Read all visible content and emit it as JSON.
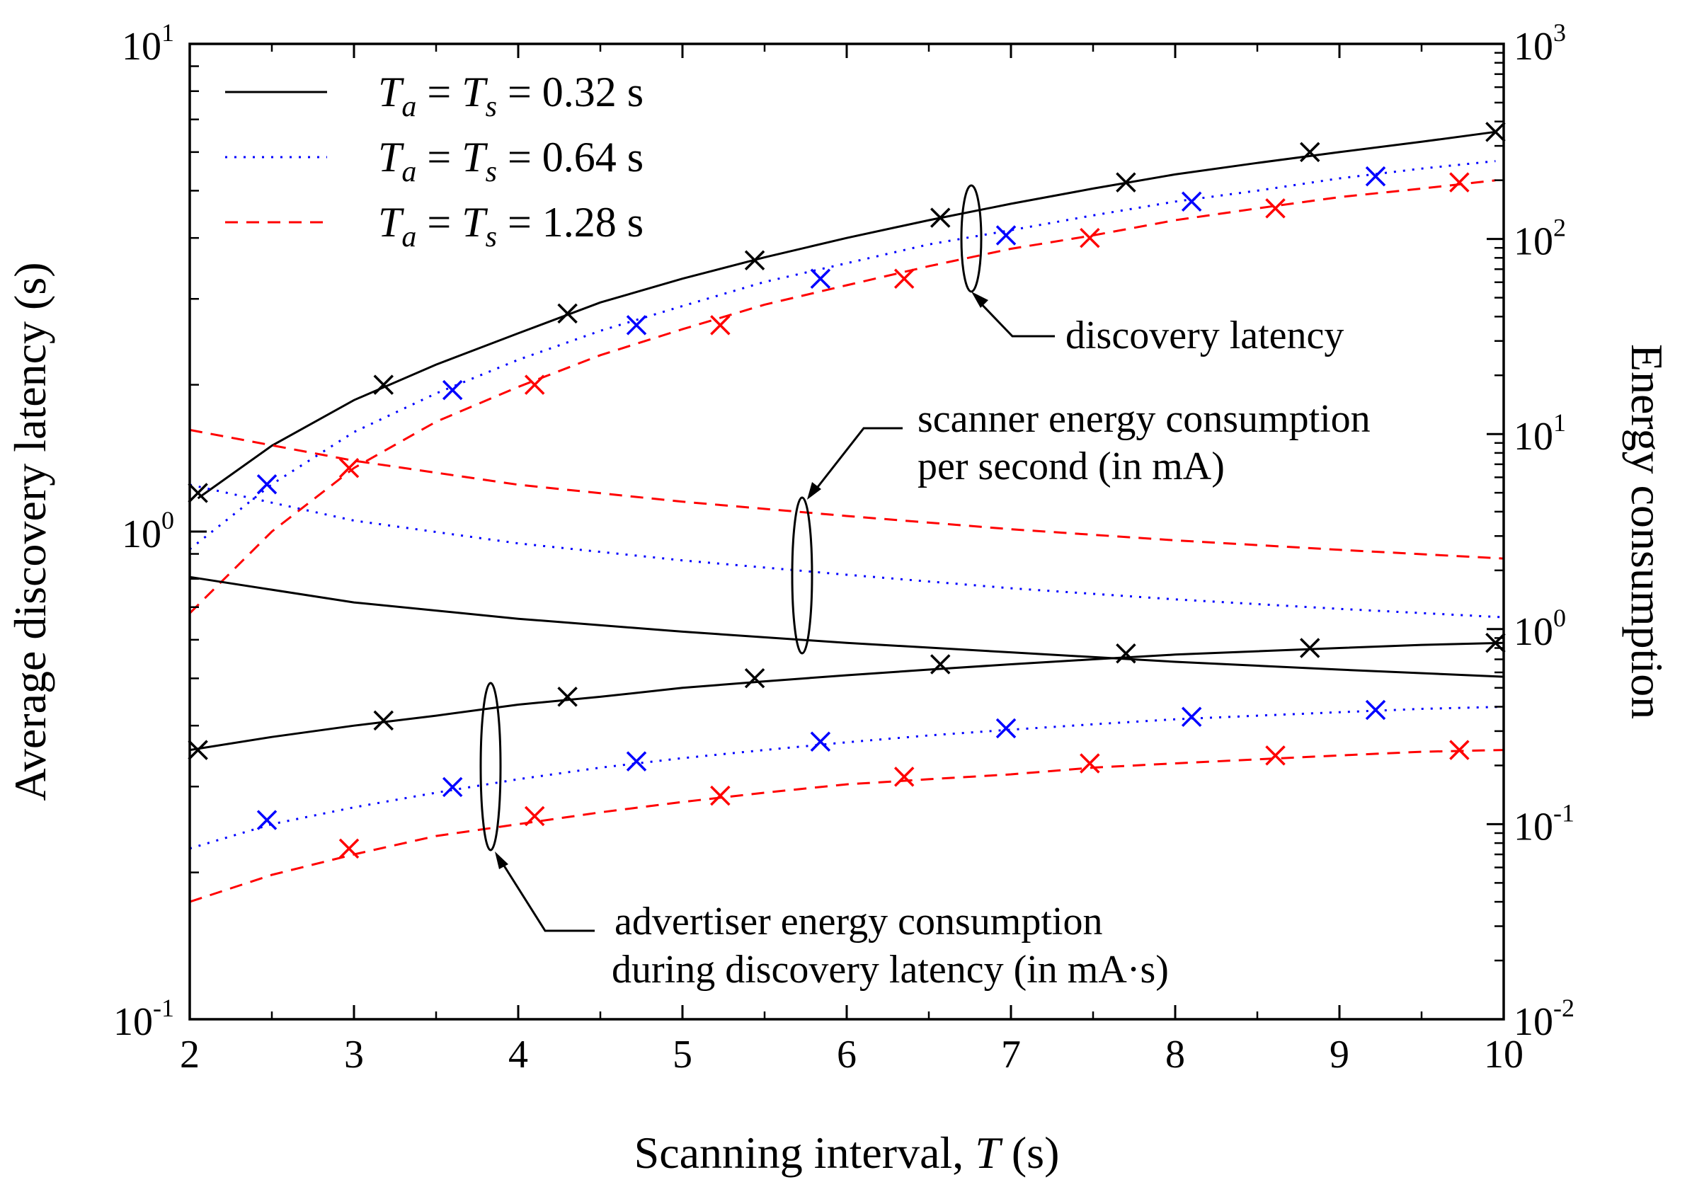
{
  "chart_data": {
    "type": "line",
    "xlabel": "Scanning interval, T (s)",
    "xlabel_prefix": "Scanning interval, ",
    "xlabel_var": "T",
    "xlabel_suffix": " (s)",
    "ylabel": "Average discovery latency (s)",
    "y2label": "Energy consumption",
    "xlim": [
      2,
      10
    ],
    "ylim": [
      0.1,
      10
    ],
    "y2lim": [
      0.01,
      1000
    ],
    "yscale": "log",
    "y2scale": "log",
    "xticks": [
      "2",
      "3",
      "4",
      "5",
      "6",
      "7",
      "8",
      "9",
      "10"
    ],
    "yticks": [
      {
        "base": "10",
        "exp": "-1"
      },
      {
        "base": "10",
        "exp": "0"
      },
      {
        "base": "10",
        "exp": "1"
      }
    ],
    "y2ticks": [
      {
        "base": "10",
        "exp": "-2"
      },
      {
        "base": "10",
        "exp": "-1"
      },
      {
        "base": "10",
        "exp": "0"
      },
      {
        "base": "10",
        "exp": "1"
      },
      {
        "base": "10",
        "exp": "2"
      },
      {
        "base": "10",
        "exp": "3"
      }
    ],
    "legend": [
      {
        "var1": "T",
        "sub1": "a",
        "var2": "T",
        "sub2": "s",
        "value": " = 0.32 s",
        "color": "#000000",
        "dash": "solid"
      },
      {
        "var1": "T",
        "sub1": "a",
        "var2": "T",
        "sub2": "s",
        "value": " = 0.64 s",
        "color": "#0000ff",
        "dash": "dotted"
      },
      {
        "var1": "T",
        "sub1": "a",
        "var2": "T",
        "sub2": "s",
        "value": " = 1.28 s",
        "color": "#ff0000",
        "dash": "dashed"
      }
    ],
    "series": [
      {
        "name": "discovery latency, Ta = Ts = 0.32 s",
        "axis": "left",
        "color": "#000000",
        "dash": "solid",
        "x": [
          2.05,
          2.5,
          3.0,
          3.5,
          4.0,
          4.5,
          5.0,
          5.5,
          6.0,
          6.5,
          7.0,
          7.5,
          8.0,
          8.5,
          9.0,
          9.5,
          9.95
        ],
        "y": [
          1.17,
          1.5,
          1.86,
          2.2,
          2.55,
          2.95,
          3.3,
          3.65,
          4.0,
          4.35,
          4.7,
          5.05,
          5.4,
          5.7,
          6.0,
          6.3,
          6.6
        ],
        "markers_x": [
          2.05,
          3.18,
          4.3,
          5.44,
          6.57,
          7.7,
          8.82,
          9.95
        ],
        "markers_y": [
          1.2,
          2.0,
          2.8,
          3.6,
          4.4,
          5.2,
          6.0,
          6.6
        ]
      },
      {
        "name": "discovery latency, Ta = Ts = 0.64 s",
        "axis": "left",
        "color": "#0000ff",
        "dash": "dotted",
        "x": [
          2.0,
          2.5,
          3.0,
          3.5,
          4.0,
          4.5,
          5.0,
          5.5,
          6.0,
          6.5,
          7.0,
          7.5,
          8.0,
          8.5,
          9.0,
          9.5,
          9.95
        ],
        "y": [
          0.92,
          1.25,
          1.6,
          1.92,
          2.25,
          2.58,
          2.9,
          3.25,
          3.55,
          3.88,
          4.15,
          4.45,
          4.75,
          5.0,
          5.3,
          5.55,
          5.75
        ],
        "markers_x": [
          2.47,
          3.6,
          4.72,
          5.84,
          6.97,
          8.1,
          9.22
        ],
        "markers_y": [
          1.25,
          1.95,
          2.65,
          3.3,
          4.05,
          4.75,
          5.35
        ]
      },
      {
        "name": "discovery latency, Ta = Ts = 1.28 s",
        "axis": "left",
        "color": "#ff0000",
        "dash": "dashed",
        "x": [
          2.0,
          2.5,
          3.0,
          3.5,
          4.0,
          4.5,
          5.0,
          5.5,
          6.0,
          6.5,
          7.0,
          7.5,
          8.0,
          8.5,
          9.0,
          9.5,
          9.95
        ],
        "y": [
          0.68,
          1.0,
          1.35,
          1.68,
          1.98,
          2.3,
          2.6,
          2.92,
          3.2,
          3.5,
          3.8,
          4.05,
          4.35,
          4.6,
          4.85,
          5.05,
          5.25
        ],
        "markers_x": [
          2.97,
          4.1,
          5.23,
          6.35,
          7.48,
          8.61,
          9.73
        ],
        "markers_y": [
          1.35,
          2.0,
          2.65,
          3.3,
          4.0,
          4.6,
          5.2
        ]
      },
      {
        "name": "scanner energy consumption per second, Ta = Ts = 0.32 s",
        "axis": "right",
        "color": "#000000",
        "dash": "solid",
        "x": [
          2.0,
          3.0,
          4.0,
          5.0,
          6.0,
          7.0,
          8.0,
          9.0,
          10.0
        ],
        "y": [
          1.85,
          1.37,
          1.13,
          0.97,
          0.85,
          0.76,
          0.68,
          0.62,
          0.57
        ]
      },
      {
        "name": "scanner energy consumption per second, Ta = Ts = 0.64 s",
        "axis": "right",
        "color": "#0000ff",
        "dash": "dotted",
        "x": [
          2.0,
          3.0,
          4.0,
          5.0,
          6.0,
          7.0,
          8.0,
          9.0,
          10.0
        ],
        "y": [
          5.5,
          3.6,
          2.75,
          2.25,
          1.9,
          1.62,
          1.42,
          1.27,
          1.15
        ]
      },
      {
        "name": "scanner energy consumption per second, Ta = Ts = 1.28 s",
        "axis": "right",
        "color": "#ff0000",
        "dash": "dashed",
        "x": [
          2.0,
          3.0,
          4.0,
          5.0,
          6.0,
          7.0,
          8.0,
          9.0,
          10.0
        ],
        "y": [
          10.5,
          7.3,
          5.5,
          4.5,
          3.8,
          3.25,
          2.85,
          2.55,
          2.3
        ]
      },
      {
        "name": "advertiser energy consumption during discovery latency, Ta = Ts = 0.32 s",
        "axis": "right",
        "color": "#000000",
        "dash": "solid",
        "x": [
          2.0,
          2.5,
          3.0,
          3.5,
          4.0,
          4.5,
          5.0,
          5.5,
          6.0,
          6.5,
          7.0,
          7.5,
          8.0,
          8.5,
          9.0,
          9.5,
          10.0
        ],
        "y": [
          0.24,
          0.28,
          0.32,
          0.36,
          0.41,
          0.45,
          0.5,
          0.54,
          0.58,
          0.62,
          0.66,
          0.7,
          0.74,
          0.77,
          0.8,
          0.83,
          0.85
        ],
        "markers_x": [
          2.05,
          3.18,
          4.3,
          5.44,
          6.57,
          7.7,
          8.82,
          9.95
        ],
        "markers_y": [
          0.24,
          0.34,
          0.45,
          0.56,
          0.66,
          0.75,
          0.8,
          0.85
        ]
      },
      {
        "name": "advertiser energy consumption during discovery latency, Ta = Ts = 0.64 s",
        "axis": "right",
        "color": "#0000ff",
        "dash": "dotted",
        "x": [
          2.0,
          2.5,
          3.0,
          3.5,
          4.0,
          4.5,
          5.0,
          5.5,
          6.0,
          6.5,
          7.0,
          7.5,
          8.0,
          8.5,
          9.0,
          9.5,
          10.0
        ],
        "y": [
          0.075,
          0.1,
          0.122,
          0.145,
          0.17,
          0.195,
          0.218,
          0.24,
          0.263,
          0.285,
          0.305,
          0.325,
          0.345,
          0.36,
          0.375,
          0.39,
          0.4
        ],
        "markers_x": [
          2.47,
          3.6,
          4.72,
          5.84,
          6.97,
          8.1,
          9.22
        ],
        "markers_y": [
          0.105,
          0.155,
          0.21,
          0.265,
          0.31,
          0.355,
          0.385
        ]
      },
      {
        "name": "advertiser energy consumption during discovery latency, Ta = Ts = 1.28 s",
        "axis": "right",
        "color": "#ff0000",
        "dash": "dashed",
        "x": [
          2.0,
          2.5,
          3.0,
          3.5,
          4.0,
          4.5,
          5.0,
          5.5,
          6.0,
          6.5,
          7.0,
          7.5,
          8.0,
          8.5,
          9.0,
          9.5,
          10.0
        ],
        "y": [
          0.04,
          0.055,
          0.07,
          0.087,
          0.1,
          0.115,
          0.13,
          0.145,
          0.16,
          0.17,
          0.18,
          0.195,
          0.205,
          0.215,
          0.225,
          0.235,
          0.24
        ],
        "markers_x": [
          2.97,
          4.1,
          5.23,
          6.35,
          7.48,
          8.61,
          9.73
        ],
        "markers_y": [
          0.075,
          0.11,
          0.14,
          0.175,
          0.205,
          0.225,
          0.24
        ]
      }
    ],
    "annotations": [
      {
        "lines": [
          "discovery latency"
        ]
      },
      {
        "lines": [
          "scanner energy consumption",
          "per second (in mA)"
        ]
      },
      {
        "lines": [
          "advertiser energy consumption",
          "during discovery latency (in mA·s)"
        ]
      }
    ]
  }
}
